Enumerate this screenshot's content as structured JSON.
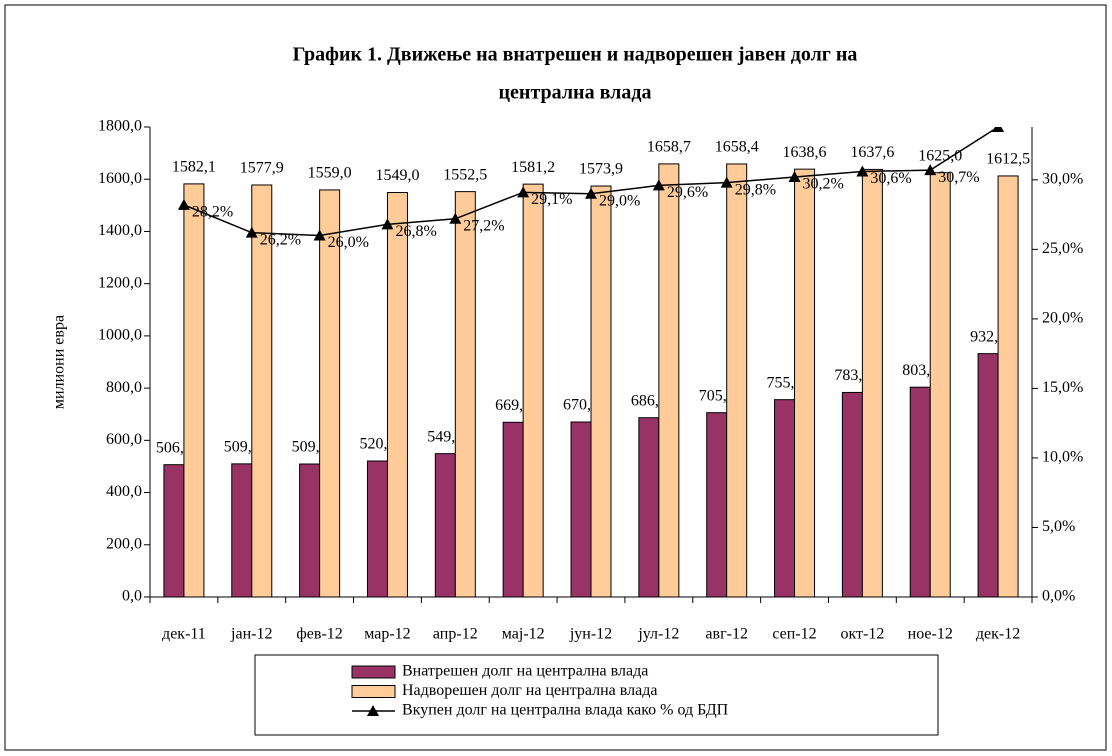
{
  "chart_data": {
    "type": "bar_line",
    "title_lines": [
      "График 1. Движење на внатрешен и надворешен јавен долг на",
      "централна влада"
    ],
    "y_label": "милиони евра",
    "categories": [
      "дек-11",
      "јан-12",
      "фев-12",
      "мар-12",
      "апр-12",
      "мај-12",
      "јун-12",
      "јул-12",
      "авг-12",
      "сеп-12",
      "окт-12",
      "ное-12",
      "дек-12"
    ],
    "series": [
      {
        "name": "Внатрешен долг на централна влада",
        "type": "bar",
        "color": "#993366",
        "values": [
          506.7,
          509.9,
          509.3,
          520.8,
          549.0,
          669.1,
          670.2,
          686.6,
          705.9,
          755.8,
          783.4,
          803.5,
          932.0
        ],
        "value_labels": [
          "506,7",
          "509,9",
          "509,3",
          "520,8",
          "549,0",
          "669,1",
          "670,2",
          "686,6",
          "705,9",
          "755,8",
          "783,4",
          "803,5",
          "932,0"
        ]
      },
      {
        "name": "Надворешен долг на централна влада",
        "type": "bar",
        "color": "#ffcc99",
        "values": [
          1582.1,
          1577.9,
          1559.0,
          1549.0,
          1552.5,
          1581.2,
          1573.9,
          1658.7,
          1658.4,
          1638.6,
          1637.6,
          1625.0,
          1612.5
        ],
        "value_labels": [
          "1582,1",
          "1577,9",
          "1559,0",
          "1549,0",
          "1552,5",
          "1581,2",
          "1573,9",
          "1658,7",
          "1658,4",
          "1638,6",
          "1637,6",
          "1625,0",
          "1612,5"
        ]
      },
      {
        "name": "Вкупен долг на централна влада како % од БДП",
        "type": "line",
        "axis": "y2",
        "color": "#000000",
        "values": [
          28.2,
          26.2,
          26.0,
          26.8,
          27.2,
          29.1,
          29.0,
          29.6,
          29.8,
          30.2,
          30.6,
          30.7,
          33.8
        ],
        "value_labels": [
          "28,2%",
          "26,2%",
          "26,0%",
          "26,8%",
          "27,2%",
          "29,1%",
          "29,0%",
          "29,6%",
          "29,8%",
          "30,2%",
          "30,6%",
          "30,7%",
          null
        ]
      }
    ],
    "ylim": [
      0,
      1800
    ],
    "yticks": [
      {
        "value": 0,
        "label": "0,0"
      },
      {
        "value": 200,
        "label": "200,0"
      },
      {
        "value": 400,
        "label": "400,0"
      },
      {
        "value": 600,
        "label": "600,0"
      },
      {
        "value": 800,
        "label": "800,0"
      },
      {
        "value": 1000,
        "label": "1000,0"
      },
      {
        "value": 1200,
        "label": "1200,0"
      },
      {
        "value": 1400,
        "label": "1400,0"
      },
      {
        "value": 1600,
        "label": "1600,0"
      },
      {
        "value": 1800,
        "label": "1800,0"
      }
    ],
    "y2lim": [
      0,
      33.8
    ],
    "y2ticks": [
      {
        "value": 0,
        "label": "0,0%"
      },
      {
        "value": 5,
        "label": "5,0%"
      },
      {
        "value": 10,
        "label": "10,0%"
      },
      {
        "value": 15,
        "label": "15,0%"
      },
      {
        "value": 20,
        "label": "20,0%"
      },
      {
        "value": 25,
        "label": "25,0%"
      },
      {
        "value": 30,
        "label": "30,0%"
      }
    ],
    "legend": "bottom"
  }
}
